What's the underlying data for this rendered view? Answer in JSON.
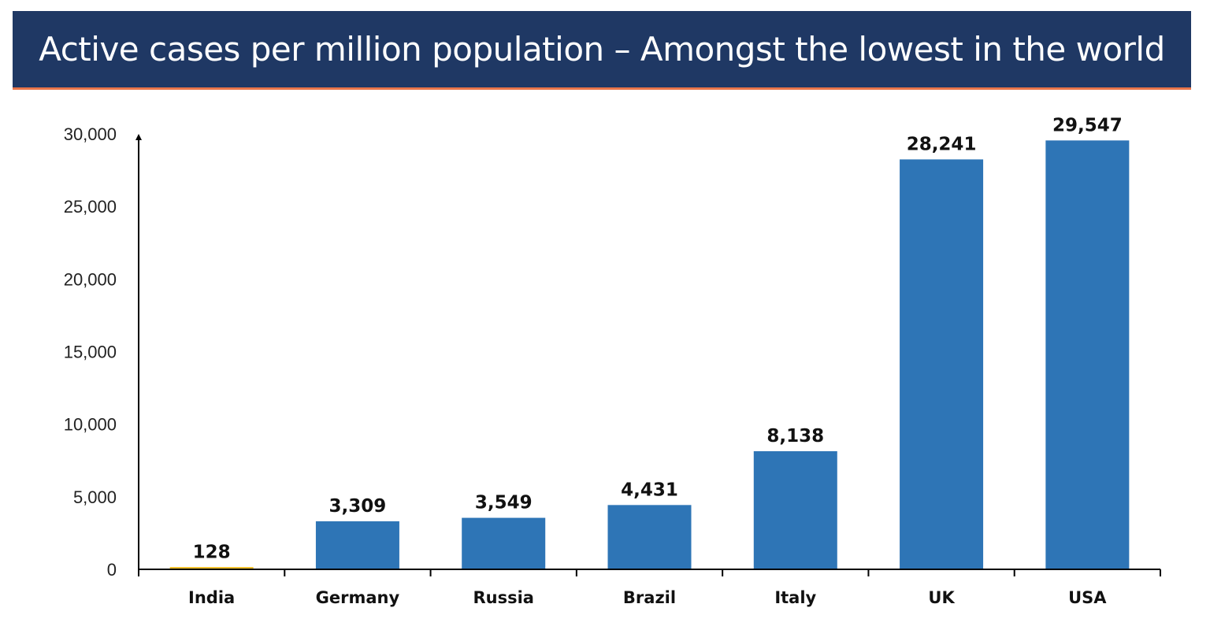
{
  "header": {
    "title": "Active cases per million population – Amongst the lowest in the world"
  },
  "colors": {
    "banner": "#1f3864",
    "banner_rule": "#e8754a",
    "bar": "#2e75b6",
    "highlight_bar": "#f2c12e",
    "axis": "#000000"
  },
  "chart_data": {
    "type": "bar",
    "title": "Active cases per million population – Amongst the lowest in the world",
    "xlabel": "",
    "ylabel": "",
    "categories": [
      "India",
      "Germany",
      "Russia",
      "Brazil",
      "Italy",
      "UK",
      "USA"
    ],
    "values": [
      128,
      3309,
      3549,
      4431,
      8138,
      28241,
      29547
    ],
    "data_labels": [
      "128",
      "3,309",
      "3,549",
      "4,431",
      "8,138",
      "28,241",
      "29,547"
    ],
    "highlight_category": "India",
    "ylim": [
      0,
      30000
    ],
    "yticks": [
      0,
      5000,
      10000,
      15000,
      20000,
      25000,
      30000
    ],
    "ytick_labels": [
      "0",
      "5,000",
      "10,000",
      "15,000",
      "20,000",
      "25,000",
      "30,000"
    ],
    "grid": false,
    "legend": "none"
  }
}
